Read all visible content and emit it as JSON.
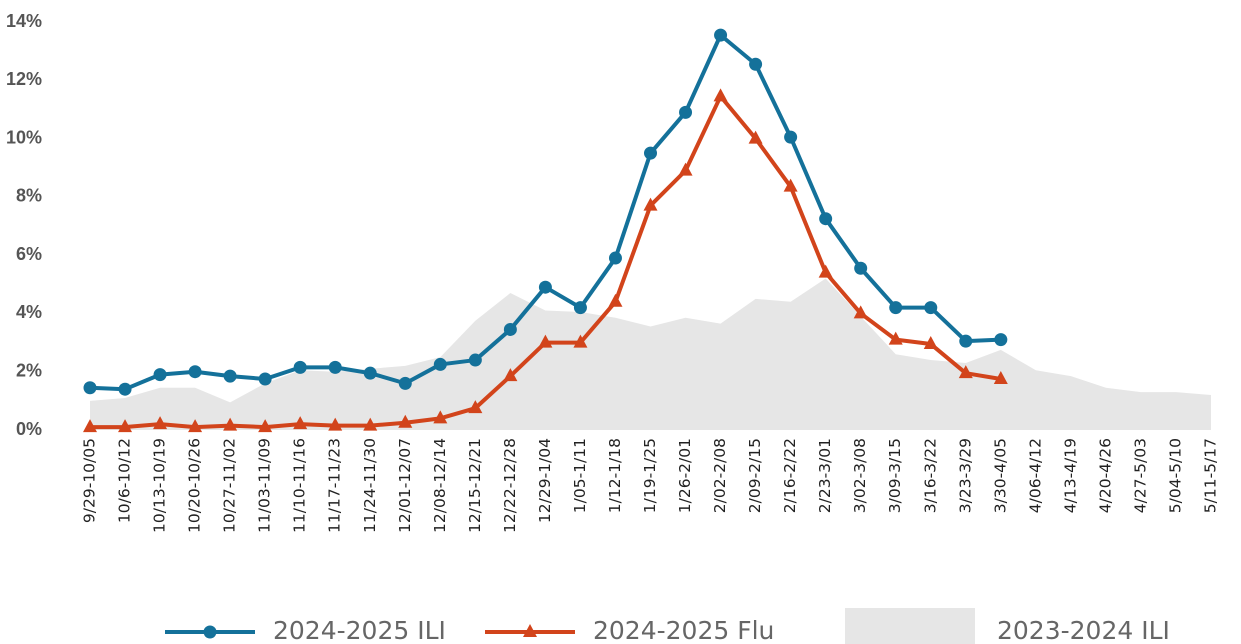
{
  "chart_data": {
    "type": "line",
    "categories": [
      "9/29-10/05",
      "10/6-10/12",
      "10/13-10/19",
      "10/20-10/26",
      "10/27-11/02",
      "11/03-11/09",
      "11/10-11/16",
      "11/17-11/23",
      "11/24-11/30",
      "12/01-12/07",
      "12/08-12/14",
      "12/15-12/21",
      "12/22-12/28",
      "12/29-1/04",
      "1/05-1/11",
      "1/12-1/18",
      "1/19-1/25",
      "1/26-2/01",
      "2/02-2/08",
      "2/09-2/15",
      "2/16-2/22",
      "2/23-3/01",
      "3/02-3/08",
      "3/09-3/15",
      "3/16-3/22",
      "3/23-3/29",
      "3/30-4/05",
      "4/06-4/12",
      "4/13-4/19",
      "4/20-4/26",
      "4/27-5/03",
      "5/04-5/10",
      "5/11-5/17"
    ],
    "series": [
      {
        "name": "2023-2024 ILI",
        "type": "area",
        "color": "#e6e6e6",
        "values": [
          1.0,
          1.1,
          1.45,
          1.45,
          0.95,
          1.6,
          2.05,
          2.0,
          2.1,
          2.2,
          2.5,
          3.75,
          4.7,
          4.1,
          4.05,
          3.85,
          3.55,
          3.85,
          3.65,
          4.5,
          4.4,
          5.2,
          3.9,
          2.6,
          2.4,
          2.3,
          2.75,
          2.05,
          1.85,
          1.45,
          1.3,
          1.3,
          1.2
        ]
      },
      {
        "name": "2024-2025 ILI",
        "type": "line",
        "marker": "circle",
        "color": "#14719a",
        "values": [
          1.45,
          1.4,
          1.9,
          2.0,
          1.85,
          1.75,
          2.15,
          2.15,
          1.95,
          1.6,
          2.25,
          2.4,
          3.45,
          4.9,
          4.2,
          5.9,
          9.5,
          10.9,
          13.55,
          12.55,
          10.05,
          7.25,
          5.55,
          4.2,
          4.2,
          3.05,
          3.1,
          null,
          null,
          null,
          null,
          null,
          null
        ]
      },
      {
        "name": "2024-2025 Flu",
        "type": "line",
        "marker": "triangle",
        "color": "#d2441b",
        "values": [
          0.1,
          0.1,
          0.2,
          0.1,
          0.15,
          0.1,
          0.2,
          0.15,
          0.15,
          0.25,
          0.4,
          0.75,
          1.85,
          3.0,
          3.0,
          4.4,
          7.7,
          8.9,
          11.45,
          10.0,
          8.35,
          5.4,
          4.0,
          3.1,
          2.95,
          1.95,
          1.75,
          null,
          null,
          null,
          null,
          null,
          null
        ]
      }
    ],
    "legend_order": [
      1,
      2,
      0
    ],
    "ylim": [
      0,
      14
    ],
    "yticks": [
      {
        "value": 0,
        "label": "0%"
      },
      {
        "value": 2,
        "label": "2%"
      },
      {
        "value": 4,
        "label": "4%"
      },
      {
        "value": 6,
        "label": "6%"
      },
      {
        "value": 8,
        "label": "8%"
      },
      {
        "value": 10,
        "label": "10%"
      },
      {
        "value": 12,
        "label": "12%"
      },
      {
        "value": 14,
        "label": "14%"
      }
    ],
    "legend": "bottom"
  }
}
